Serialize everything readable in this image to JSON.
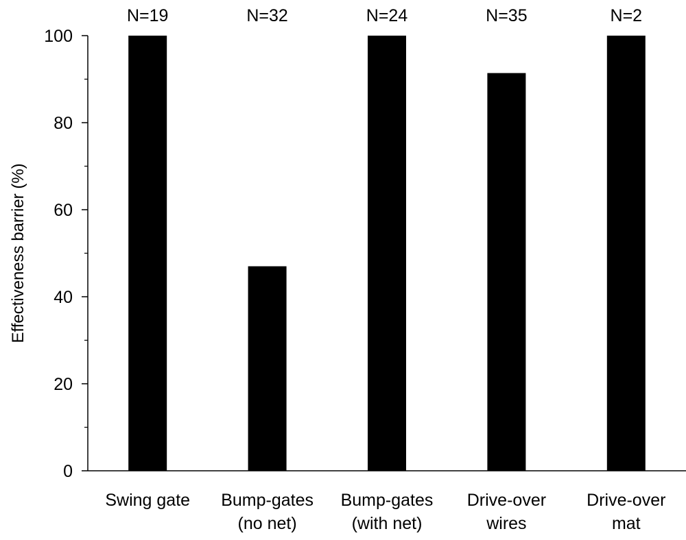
{
  "chart_data": {
    "type": "bar",
    "categories": [
      [
        "Swing gate"
      ],
      [
        "Bump-gates",
        "(no net)"
      ],
      [
        "Bump-gates",
        "(with net)"
      ],
      [
        "Drive-over",
        "wires"
      ],
      [
        "Drive-over",
        "mat"
      ]
    ],
    "values": [
      100,
      47,
      100,
      91.4,
      100
    ],
    "annotations": [
      "N=19",
      "N=32",
      "N=24",
      "N=35",
      "N=2"
    ],
    "title": "",
    "xlabel": "",
    "ylabel": "Effectiveness barrier (%)",
    "ylim": [
      0,
      100
    ],
    "yticks": [
      0,
      20,
      40,
      60,
      80,
      100
    ],
    "grid": false,
    "legend": "none",
    "bar_color": "#000000"
  }
}
